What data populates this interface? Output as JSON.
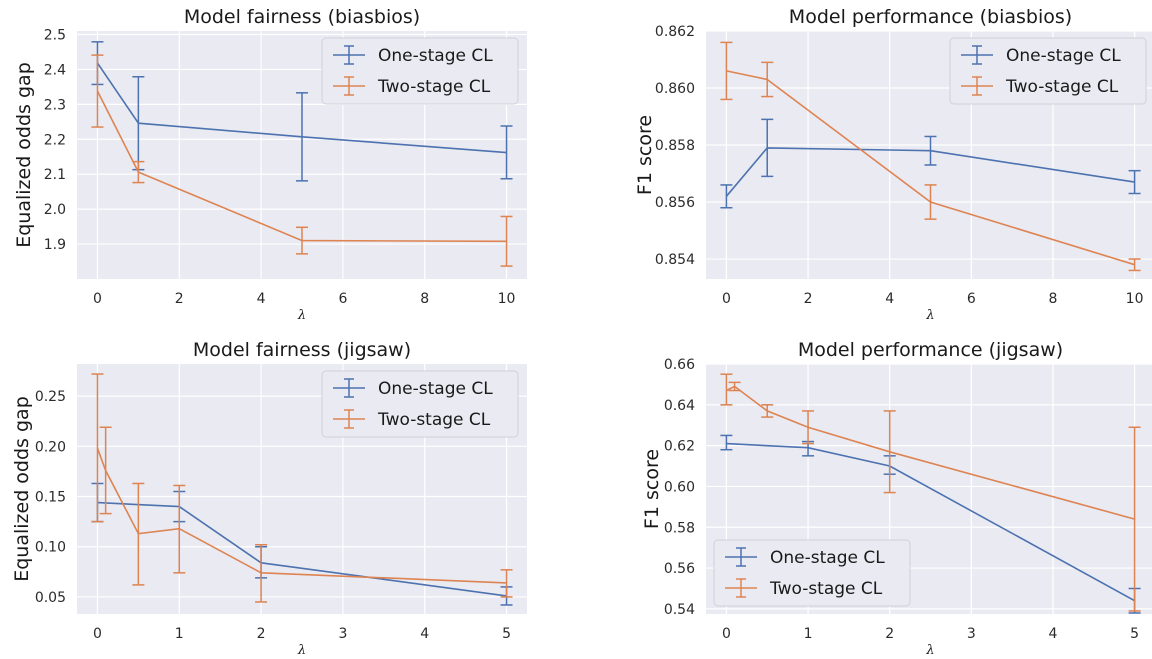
{
  "colors": {
    "plot_background": "#eaeaf2",
    "grid": "#ffffff",
    "one_stage": "#4c72b0",
    "two_stage": "#dd8452"
  },
  "chart_data": [
    {
      "type": "line",
      "title": "Model fairness (biasbios)",
      "xlabel": "λ",
      "ylabel": "Equalized odds gap",
      "xlim": [
        -0.5,
        10.5
      ],
      "ylim": [
        1.8,
        2.51
      ],
      "xticks": [
        "0",
        "2",
        "4",
        "6",
        "8",
        "10"
      ],
      "yticks": [
        "1.9",
        "2.0",
        "2.1",
        "2.2",
        "2.3",
        "2.4",
        "2.5"
      ],
      "grid": true,
      "legend_position": "upper right",
      "series": [
        {
          "name": "One-stage CL",
          "color": "#4c72b0",
          "x": [
            0,
            1,
            5,
            10
          ],
          "y": [
            2.418,
            2.246,
            2.207,
            2.162
          ],
          "err_low": [
            2.357,
            2.113,
            2.081,
            2.087
          ],
          "err_high": [
            2.479,
            2.379,
            2.333,
            2.238
          ]
        },
        {
          "name": "Two-stage CL",
          "color": "#dd8452",
          "x": [
            0,
            1,
            5,
            10
          ],
          "y": [
            2.338,
            2.106,
            1.91,
            1.908
          ],
          "err_low": [
            2.235,
            2.076,
            1.872,
            1.837
          ],
          "err_high": [
            2.441,
            2.136,
            1.948,
            1.979
          ]
        }
      ]
    },
    {
      "type": "line",
      "title": "Model performance (biasbios)",
      "xlabel": "λ",
      "ylabel": "F1 score",
      "xlim": [
        -0.5,
        10.5
      ],
      "ylim": [
        0.8533,
        0.862
      ],
      "xticks": [
        "0",
        "2",
        "4",
        "6",
        "8",
        "10"
      ],
      "yticks": [
        "0.854",
        "0.856",
        "0.858",
        "0.860",
        "0.862"
      ],
      "grid": true,
      "legend_position": "upper right",
      "series": [
        {
          "name": "One-stage CL",
          "color": "#4c72b0",
          "x": [
            0,
            1,
            5,
            10
          ],
          "y": [
            0.8562,
            0.8579,
            0.8578,
            0.8567
          ],
          "err_low": [
            0.8558,
            0.8569,
            0.8573,
            0.8563
          ],
          "err_high": [
            0.8566,
            0.8589,
            0.8583,
            0.8571
          ]
        },
        {
          "name": "Two-stage CL",
          "color": "#dd8452",
          "x": [
            0,
            1,
            5,
            10
          ],
          "y": [
            0.8606,
            0.8603,
            0.856,
            0.8538
          ],
          "err_low": [
            0.8596,
            0.8597,
            0.8554,
            0.8536
          ],
          "err_high": [
            0.8616,
            0.8609,
            0.8566,
            0.854
          ]
        }
      ]
    },
    {
      "type": "line",
      "title": "Model fairness (jigsaw)",
      "xlabel": "λ",
      "ylabel": "Equalized odds gap",
      "xlim": [
        -0.25,
        5.25
      ],
      "ylim": [
        0.033,
        0.282
      ],
      "xticks": [
        "0",
        "1",
        "2",
        "3",
        "4",
        "5"
      ],
      "yticks": [
        "0.05",
        "0.10",
        "0.15",
        "0.20",
        "0.25"
      ],
      "grid": true,
      "legend_position": "upper right",
      "series": [
        {
          "name": "One-stage CL",
          "color": "#4c72b0",
          "x": [
            0,
            1,
            2,
            5
          ],
          "y": [
            0.144,
            0.14,
            0.084,
            0.051
          ],
          "err_low": [
            0.125,
            0.125,
            0.069,
            0.042
          ],
          "err_high": [
            0.163,
            0.155,
            0.1,
            0.06
          ]
        },
        {
          "name": "Two-stage CL",
          "color": "#dd8452",
          "x": [
            0,
            0.1,
            0.5,
            1,
            2,
            5
          ],
          "y": [
            0.198,
            0.176,
            0.113,
            0.118,
            0.074,
            0.064
          ],
          "err_low": [
            0.125,
            0.133,
            0.062,
            0.074,
            0.045,
            0.05
          ],
          "err_high": [
            0.272,
            0.219,
            0.163,
            0.161,
            0.102,
            0.077
          ]
        }
      ]
    },
    {
      "type": "line",
      "title": "Model performance (jigsaw)",
      "xlabel": "λ",
      "ylabel": "F1 score",
      "xlim": [
        -0.25,
        5.25
      ],
      "ylim": [
        0.5375,
        0.66
      ],
      "xticks": [
        "0",
        "1",
        "2",
        "3",
        "4",
        "5"
      ],
      "yticks": [
        "0.54",
        "0.56",
        "0.58",
        "0.60",
        "0.62",
        "0.64",
        "0.66"
      ],
      "grid": true,
      "legend_position": "lower left",
      "series": [
        {
          "name": "One-stage CL",
          "color": "#4c72b0",
          "x": [
            0,
            1,
            2,
            5
          ],
          "y": [
            0.621,
            0.619,
            0.61,
            0.544
          ],
          "err_low": [
            0.618,
            0.615,
            0.606,
            0.538
          ],
          "err_high": [
            0.625,
            0.622,
            0.615,
            0.55
          ]
        },
        {
          "name": "Two-stage CL",
          "color": "#dd8452",
          "x": [
            0,
            0.1,
            0.5,
            1,
            2,
            5
          ],
          "y": [
            0.647,
            0.649,
            0.637,
            0.629,
            0.617,
            0.584
          ],
          "err_low": [
            0.64,
            0.647,
            0.634,
            0.621,
            0.597,
            0.539
          ],
          "err_high": [
            0.655,
            0.651,
            0.64,
            0.637,
            0.637,
            0.629
          ]
        }
      ]
    }
  ]
}
